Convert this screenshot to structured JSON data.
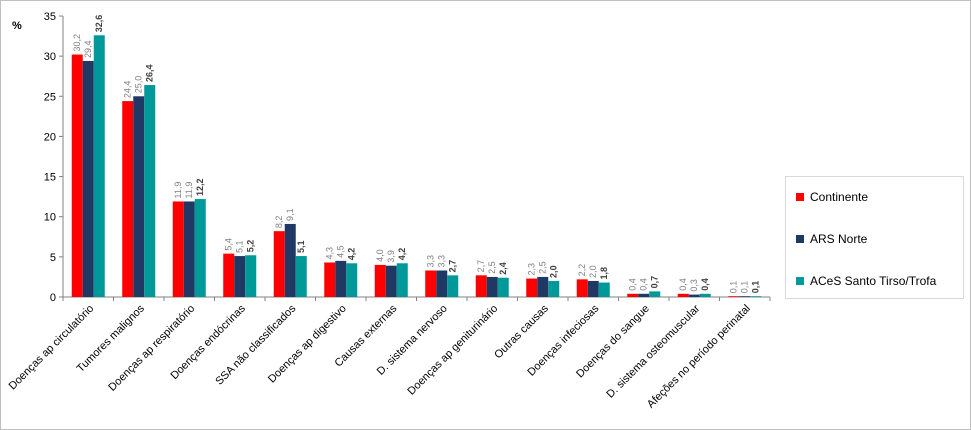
{
  "chart_data": {
    "type": "bar",
    "ylabel": "%",
    "ylim": [
      0,
      35
    ],
    "yticks": [
      0,
      5,
      10,
      15,
      20,
      25,
      30,
      35
    ],
    "grid": false,
    "legend_position": "right",
    "categories": [
      "Doenças ap circulatório",
      "Tumores malignos",
      "Doenças ap respiratório",
      "Doenças endócrinas",
      "SSA não classificados",
      "Doenças ap digestivo",
      "Causas externas",
      "D. sistema nervoso",
      "Doenças ap geniturinário",
      "Outras causas",
      "Doenças infeciosas",
      "Doenças do sangue",
      "D. sistema osteomuscular",
      "Afeções no período perinatal"
    ],
    "series": [
      {
        "name": "Continente",
        "color": "#ff0000",
        "label_color": "#808080",
        "label_bold": false,
        "values": [
          30.2,
          24.4,
          11.9,
          5.4,
          8.2,
          4.3,
          4.0,
          3.3,
          2.7,
          2.3,
          2.2,
          0.4,
          0.4,
          0.1
        ],
        "labels": [
          "30,2",
          "24,4",
          "11,9",
          "5,4",
          "8,2",
          "4,3",
          "4,0",
          "3,3",
          "2,7",
          "2,3",
          "2,2",
          "0,4",
          "0,4",
          "0,1"
        ]
      },
      {
        "name": "ARS Norte",
        "color": "#1f3864",
        "label_color": "#808080",
        "label_bold": false,
        "values": [
          29.4,
          25.0,
          11.9,
          5.1,
          9.1,
          4.5,
          3.9,
          3.3,
          2.5,
          2.5,
          2.0,
          0.4,
          0.3,
          0.1
        ],
        "labels": [
          "29,4",
          "25,0",
          "11,9",
          "5,1",
          "9,1",
          "4,5",
          "3,9",
          "3,3",
          "2,5",
          "2,5",
          "2,0",
          "0,4",
          "0,3",
          "0,1"
        ]
      },
      {
        "name": "ACeS Santo Tirso/Trofa",
        "color": "#009999",
        "label_color": "#404040",
        "label_bold": true,
        "values": [
          32.6,
          26.4,
          12.2,
          5.2,
          5.1,
          4.2,
          4.2,
          2.7,
          2.4,
          2.0,
          1.8,
          0.7,
          0.4,
          0.1
        ],
        "labels": [
          "32,6",
          "26,4",
          "12,2",
          "5,2",
          "5,1",
          "4,2",
          "4,2",
          "2,7",
          "2,4",
          "2,0",
          "1,8",
          "0,7",
          "0,4",
          "0,1"
        ]
      }
    ]
  }
}
